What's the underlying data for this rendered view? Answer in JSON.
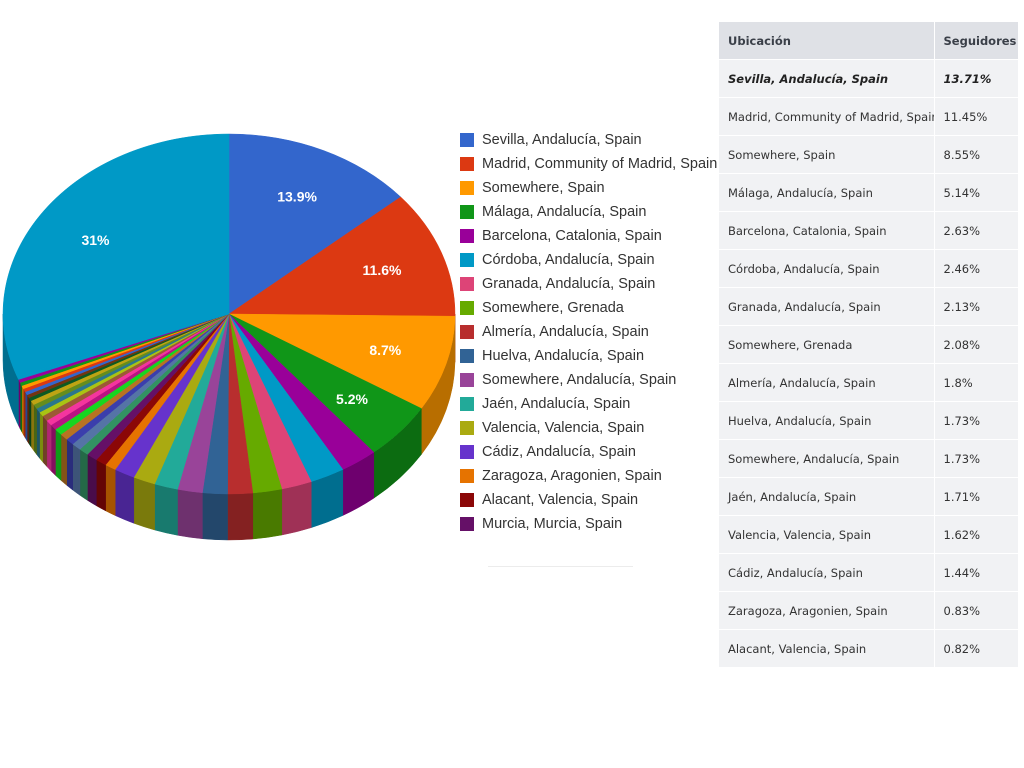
{
  "chart_data": {
    "type": "pie",
    "variant": "3d",
    "legend_placement": "right",
    "slices": [
      {
        "label": "Sevilla, Andalucía, Spain",
        "value": 13.9,
        "value_label": "13.9%",
        "color": "#3366cc"
      },
      {
        "label": "Madrid, Community of Madrid, Spain",
        "value": 11.6,
        "value_label": "11.6%",
        "color": "#dc3912"
      },
      {
        "label": "Somewhere, Spain",
        "value": 8.7,
        "value_label": "8.7%",
        "color": "#ff9900"
      },
      {
        "label": "Málaga, Andalucía, Spain",
        "value": 5.2,
        "value_label": "5.2%",
        "color": "#109618"
      },
      {
        "label": "Barcelona, Catalonia, Spain",
        "value": 2.7,
        "value_label": "",
        "color": "#990099"
      },
      {
        "label": "Córdoba, Andalucía, Spain",
        "value": 2.5,
        "value_label": "",
        "color": "#0099c6"
      },
      {
        "label": "Granada, Andalucía, Spain",
        "value": 2.2,
        "value_label": "",
        "color": "#dd4477"
      },
      {
        "label": "Somewhere, Grenada",
        "value": 2.1,
        "value_label": "",
        "color": "#66aa00"
      },
      {
        "label": "Almería, Andalucía, Spain",
        "value": 1.8,
        "value_label": "",
        "color": "#b82e2e"
      },
      {
        "label": "Huelva, Andalucía, Spain",
        "value": 1.8,
        "value_label": "",
        "color": "#316395"
      },
      {
        "label": "Somewhere, Andalucía, Spain",
        "value": 1.8,
        "value_label": "",
        "color": "#994499"
      },
      {
        "label": "Jaén, Andalucía, Spain",
        "value": 1.7,
        "value_label": "",
        "color": "#22aa99"
      },
      {
        "label": "Valencia, Valencia, Spain",
        "value": 1.6,
        "value_label": "",
        "color": "#aaaa11"
      },
      {
        "label": "Cádiz, Andalucía, Spain",
        "value": 1.5,
        "value_label": "",
        "color": "#6633cc"
      },
      {
        "label": "Zaragoza, Aragonien, Spain",
        "value": 0.8,
        "value_label": "",
        "color": "#e67300"
      },
      {
        "label": "Alacant, Valencia, Spain",
        "value": 0.8,
        "value_label": "",
        "color": "#8b0707"
      },
      {
        "label": "Murcia, Murcia, Spain",
        "value": 0.8,
        "value_label": "",
        "color": "#651067"
      },
      {
        "label": "",
        "value": 0.7,
        "value_label": "",
        "color": "#329262"
      },
      {
        "label": "",
        "value": 0.7,
        "value_label": "",
        "color": "#5574a6"
      },
      {
        "label": "",
        "value": 0.6,
        "value_label": "",
        "color": "#3b3eac"
      },
      {
        "label": "",
        "value": 0.6,
        "value_label": "",
        "color": "#b77322"
      },
      {
        "label": "",
        "value": 0.6,
        "value_label": "",
        "color": "#16d620"
      },
      {
        "label": "",
        "value": 0.5,
        "value_label": "",
        "color": "#b91383"
      },
      {
        "label": "",
        "value": 0.5,
        "value_label": "",
        "color": "#f4359e"
      },
      {
        "label": "",
        "value": 0.5,
        "value_label": "",
        "color": "#9c5935"
      },
      {
        "label": "",
        "value": 0.4,
        "value_label": "",
        "color": "#a9c413"
      },
      {
        "label": "",
        "value": 0.4,
        "value_label": "",
        "color": "#2a778d"
      },
      {
        "label": "",
        "value": 0.4,
        "value_label": "",
        "color": "#668d1c"
      },
      {
        "label": "",
        "value": 0.4,
        "value_label": "",
        "color": "#bea413"
      },
      {
        "label": "",
        "value": 0.3,
        "value_label": "",
        "color": "#0c5922"
      },
      {
        "label": "",
        "value": 0.3,
        "value_label": "",
        "color": "#743411"
      },
      {
        "label": "",
        "value": 0.3,
        "value_label": "",
        "color": "#3366cc"
      },
      {
        "label": "",
        "value": 0.3,
        "value_label": "",
        "color": "#dc3912"
      },
      {
        "label": "",
        "value": 0.3,
        "value_label": "",
        "color": "#ff9900"
      },
      {
        "label": "",
        "value": 0.3,
        "value_label": "",
        "color": "#109618"
      },
      {
        "label": "",
        "value": 0.3,
        "value_label": "",
        "color": "#990099"
      },
      {
        "label": "",
        "value": 0.3,
        "value_label": "",
        "color": "#0099c6"
      },
      {
        "label": "",
        "value": 31.0,
        "value_label": "31%",
        "color": "#0099c6"
      }
    ]
  },
  "table": {
    "headers": [
      "Ubicación",
      "Seguidores"
    ],
    "rows": [
      {
        "location": "Sevilla, Andalucía, Spain",
        "followers": "13.71%",
        "featured": true
      },
      {
        "location": "Madrid, Community of Madrid, Spain",
        "followers": "11.45%"
      },
      {
        "location": "Somewhere, Spain",
        "followers": "8.55%"
      },
      {
        "location": "Málaga, Andalucía, Spain",
        "followers": "5.14%"
      },
      {
        "location": "Barcelona, Catalonia, Spain",
        "followers": "2.63%"
      },
      {
        "location": "Córdoba, Andalucía, Spain",
        "followers": "2.46%"
      },
      {
        "location": "Granada, Andalucía, Spain",
        "followers": "2.13%"
      },
      {
        "location": "Somewhere, Grenada",
        "followers": "2.08%"
      },
      {
        "location": "Almería, Andalucía, Spain",
        "followers": "1.8%"
      },
      {
        "location": "Huelva, Andalucía, Spain",
        "followers": "1.73%"
      },
      {
        "location": "Somewhere, Andalucía, Spain",
        "followers": "1.73%"
      },
      {
        "location": "Jaén, Andalucía, Spain",
        "followers": "1.71%"
      },
      {
        "location": "Valencia, Valencia, Spain",
        "followers": "1.62%"
      },
      {
        "location": "Cádiz, Andalucía, Spain",
        "followers": "1.44%"
      },
      {
        "location": "Zaragoza, Aragonien, Spain",
        "followers": "0.83%"
      },
      {
        "location": "Alacant, Valencia, Spain",
        "followers": "0.82%"
      }
    ]
  }
}
